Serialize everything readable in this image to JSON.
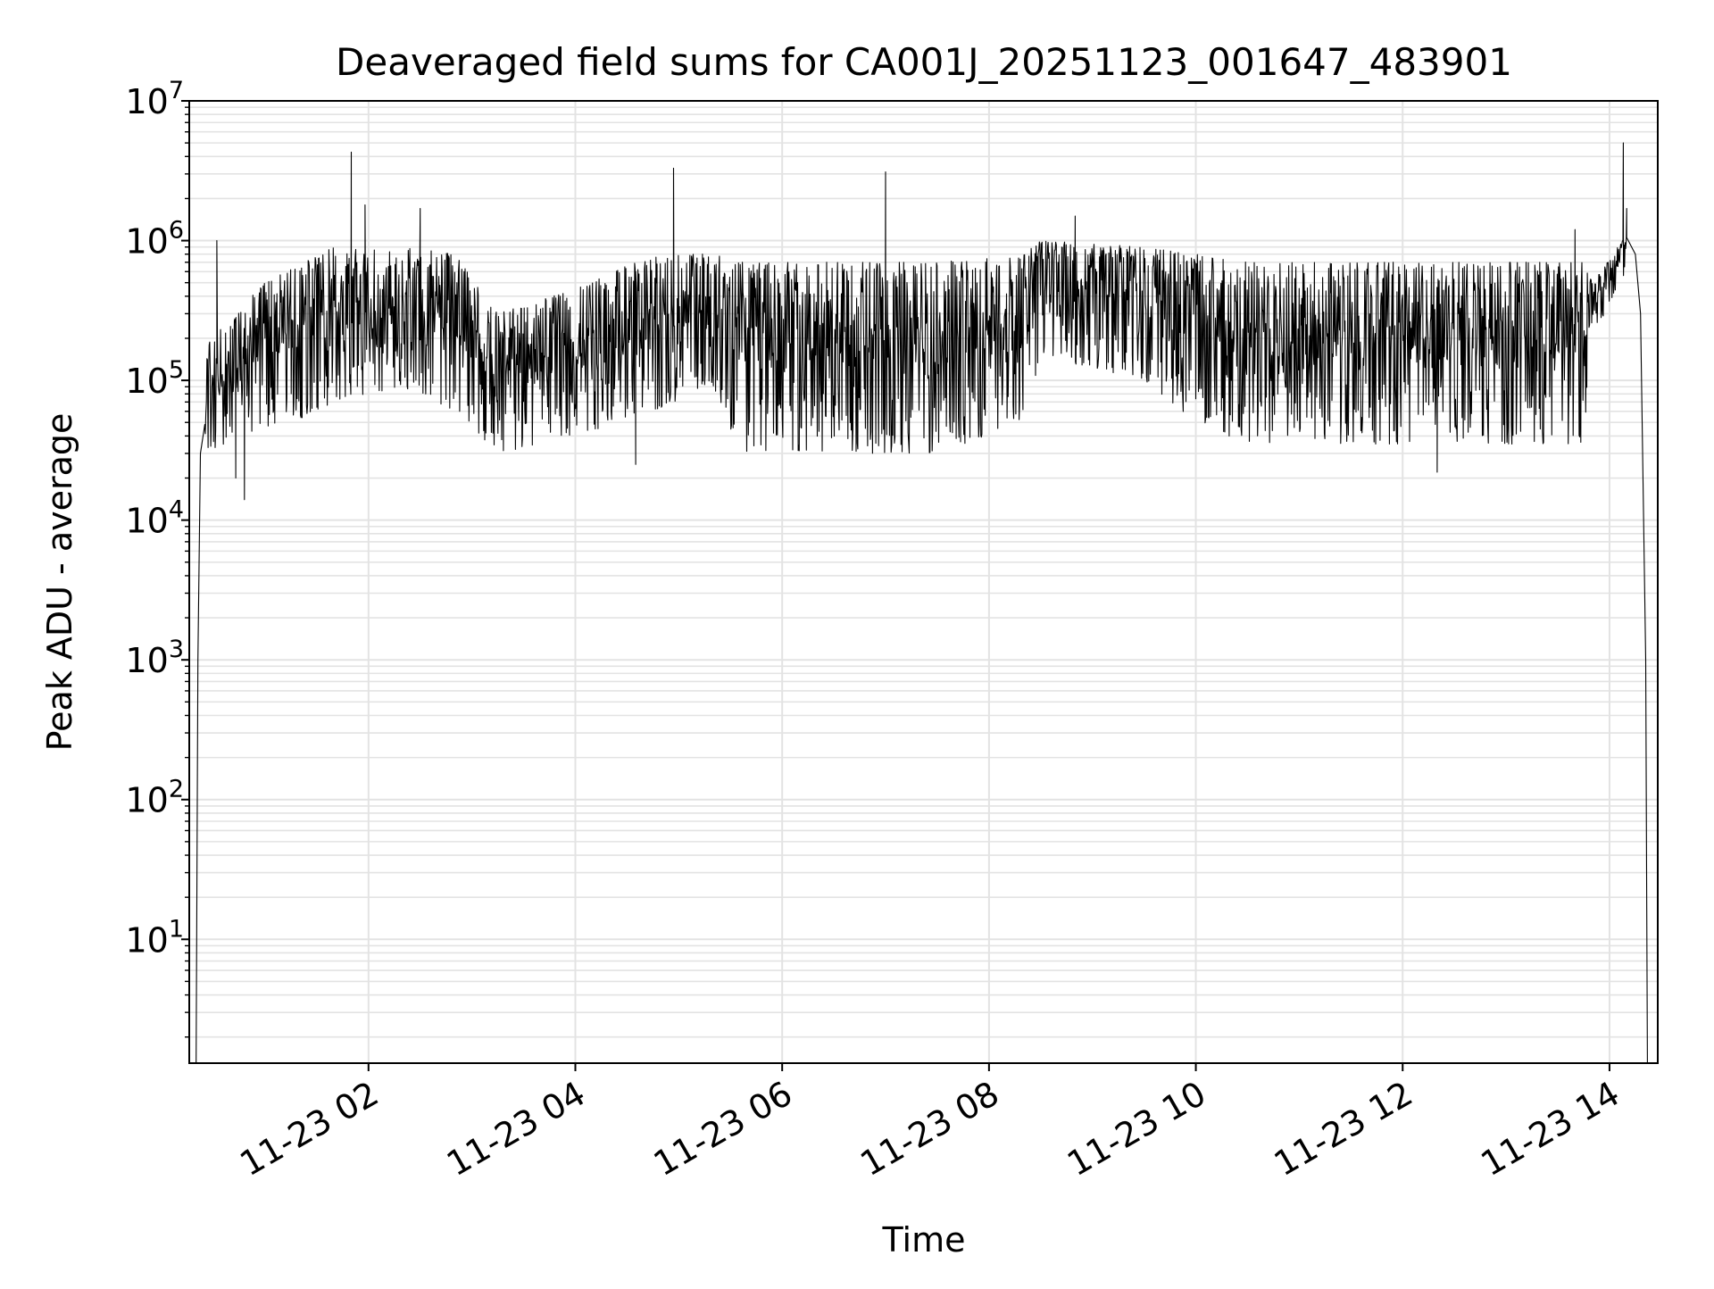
{
  "chart_data": {
    "type": "line",
    "title": "Deaveraged field sums for CA001J_20251123_001647_483901",
    "xlabel": "Time",
    "ylabel": "Peak ADU - average",
    "yscale": "log",
    "ylim": [
      1.3,
      10000000
    ],
    "xlim": [
      "2025-11-23 00:16",
      "2025-11-23 14:28"
    ],
    "grid": "major and minor",
    "line_color": "#000000",
    "grid_color": "#e3e3e3",
    "x_ticks": [
      {
        "t": "2025-11-23 02:00",
        "label": "11-23 02"
      },
      {
        "t": "2025-11-23 04:00",
        "label": "11-23 04"
      },
      {
        "t": "2025-11-23 06:00",
        "label": "11-23 06"
      },
      {
        "t": "2025-11-23 08:00",
        "label": "11-23 08"
      },
      {
        "t": "2025-11-23 10:00",
        "label": "11-23 10"
      },
      {
        "t": "2025-11-23 12:00",
        "label": "11-23 12"
      },
      {
        "t": "2025-11-23 14:00",
        "label": "11-23 14"
      }
    ],
    "y_ticks": [
      {
        "v": 10,
        "exp": "1"
      },
      {
        "v": 100,
        "exp": "2"
      },
      {
        "v": 1000,
        "exp": "3"
      },
      {
        "v": 10000,
        "exp": "4"
      },
      {
        "v": 100000,
        "exp": "5"
      },
      {
        "v": 1000000,
        "exp": "6"
      },
      {
        "v": 10000000,
        "exp": "7"
      }
    ],
    "envelope": [
      {
        "t": "2025-11-23 00:25",
        "lo": 30000,
        "hi": 180000
      },
      {
        "t": "2025-11-23 01:00",
        "lo": 40000,
        "hi": 500000
      },
      {
        "t": "2025-11-23 01:40",
        "lo": 70000,
        "hi": 900000
      },
      {
        "t": "2025-11-23 02:20",
        "lo": 90000,
        "hi": 900000
      },
      {
        "t": "2025-11-23 02:50",
        "lo": 60000,
        "hi": 800000
      },
      {
        "t": "2025-11-23 03:15",
        "lo": 30000,
        "hi": 300000
      },
      {
        "t": "2025-11-23 04:00",
        "lo": 40000,
        "hi": 450000
      },
      {
        "t": "2025-11-23 04:45",
        "lo": 60000,
        "hi": 800000
      },
      {
        "t": "2025-11-23 05:20",
        "lo": 90000,
        "hi": 800000
      },
      {
        "t": "2025-11-23 05:35",
        "lo": 30000,
        "hi": 700000
      },
      {
        "t": "2025-11-23 07:30",
        "lo": 30000,
        "hi": 700000
      },
      {
        "t": "2025-11-23 08:20",
        "lo": 50000,
        "hi": 800000
      },
      {
        "t": "2025-11-23 08:30",
        "lo": 150000,
        "hi": 1000000
      },
      {
        "t": "2025-11-23 09:30",
        "lo": 100000,
        "hi": 900000
      },
      {
        "t": "2025-11-23 10:00",
        "lo": 50000,
        "hi": 800000
      },
      {
        "t": "2025-11-23 10:30",
        "lo": 35000,
        "hi": 700000
      },
      {
        "t": "2025-11-23 12:30",
        "lo": 35000,
        "hi": 700000
      },
      {
        "t": "2025-11-23 13:45",
        "lo": 35000,
        "hi": 700000
      },
      {
        "t": "2025-11-23 13:50",
        "lo": 200000,
        "hi": 500000
      },
      {
        "t": "2025-11-23 14:10",
        "lo": 600000,
        "hi": 1100000
      }
    ],
    "spikes": [
      {
        "t": "2025-11-23 00:32",
        "v": 1000000
      },
      {
        "t": "2025-11-23 00:48",
        "v": 14000
      },
      {
        "t": "2025-11-23 00:43",
        "v": 20000
      },
      {
        "t": "2025-11-23 01:50",
        "v": 4300000
      },
      {
        "t": "2025-11-23 01:58",
        "v": 1800000
      },
      {
        "t": "2025-11-23 02:30",
        "v": 1700000
      },
      {
        "t": "2025-11-23 04:57",
        "v": 3300000
      },
      {
        "t": "2025-11-23 04:35",
        "v": 25000
      },
      {
        "t": "2025-11-23 07:00",
        "v": 3100000
      },
      {
        "t": "2025-11-23 08:50",
        "v": 1500000
      },
      {
        "t": "2025-11-23 12:20",
        "v": 22000
      },
      {
        "t": "2025-11-23 13:40",
        "v": 1200000
      },
      {
        "t": "2025-11-23 14:08",
        "v": 5000000
      },
      {
        "t": "2025-11-23 14:10",
        "v": 1700000
      }
    ],
    "edges": {
      "start": {
        "t": "2025-11-23 00:20",
        "v": 1.3
      },
      "end": {
        "t": "2025-11-23 14:22",
        "v": 1.3
      }
    }
  }
}
